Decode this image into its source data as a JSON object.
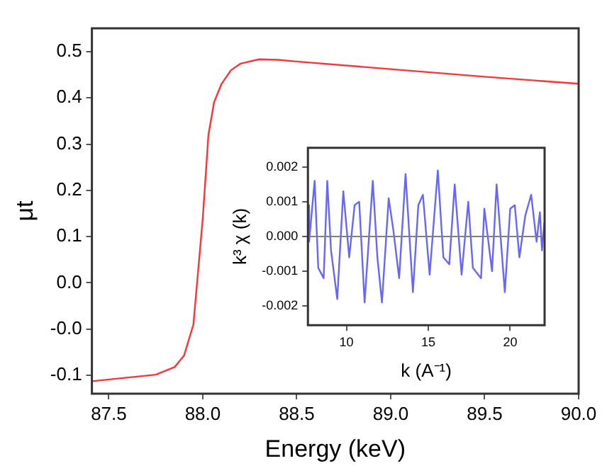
{
  "chart_data": [
    {
      "type": "line",
      "xlabel": "Energy (keV)",
      "ylabel": "μt",
      "x": [
        87.41,
        87.75,
        87.85,
        87.9,
        87.95,
        88.0,
        88.03,
        88.06,
        88.1,
        88.15,
        88.2,
        88.3,
        88.4,
        88.5,
        89.0,
        89.5,
        90.0
      ],
      "series": [
        {
          "color": "#ff3333",
          "values": [
            -0.141,
            -0.129,
            -0.115,
            -0.094,
            -0.037,
            0.159,
            0.312,
            0.372,
            0.406,
            0.431,
            0.443,
            0.451,
            0.45,
            0.447,
            0.433,
            0.419,
            0.406
          ]
        }
      ],
      "xlim": [
        87.41,
        90.0
      ],
      "ylim": [
        -0.164,
        0.508
      ],
      "xticks": [
        {
          "value": 87.5,
          "label": "87.5"
        },
        {
          "value": 88,
          "label": "88.0"
        },
        {
          "value": 88.5,
          "label": "88.5"
        },
        {
          "value": 89,
          "label": "89.0"
        },
        {
          "value": 89.5,
          "label": "89.5"
        },
        {
          "value": 90,
          "label": "90.0"
        }
      ],
      "yticks": [
        {
          "value": -0.13,
          "label": "-0.1"
        },
        {
          "value": -0.045,
          "label": "-0.0"
        },
        {
          "value": 0.04,
          "label": "0.0"
        },
        {
          "value": 0.125,
          "label": "0.1"
        },
        {
          "value": 0.21,
          "label": "0.2"
        },
        {
          "value": 0.295,
          "label": "0.3"
        },
        {
          "value": 0.38,
          "label": "0.4"
        },
        {
          "value": 0.465,
          "label": "0.5"
        }
      ],
      "grid": false
    },
    {
      "type": "line",
      "xlabel": "k (A⁻¹)",
      "ylabel": "k³ χ (k)",
      "x": [
        7.65,
        7.72,
        8.06,
        8.28,
        8.61,
        8.83,
        9.06,
        9.44,
        9.81,
        10.17,
        10.5,
        10.78,
        11.11,
        11.61,
        11.89,
        12.17,
        12.58,
        12.86,
        13.22,
        13.61,
        14.06,
        14.39,
        14.67,
        15.08,
        15.58,
        15.92,
        16.28,
        16.61,
        17.03,
        17.44,
        17.72,
        18.22,
        18.42,
        18.89,
        19.17,
        19.67,
        20.0,
        20.28,
        20.56,
        20.92,
        21.28,
        21.61,
        21.81,
        21.94,
        22.08
      ],
      "series": [
        {
          "color": "#6666ff",
          "values": [
            0.0009,
            -0.00015,
            0.0016,
            -0.0009,
            -0.0012,
            0.0016,
            -0.0004,
            -0.0018,
            0.0013,
            -0.0006,
            0.0009,
            0.001,
            -0.0019,
            0.0016,
            -0.0006,
            -0.0019,
            0.0011,
            0.0002,
            -0.0012,
            0.0018,
            -0.0016,
            0.0009,
            0.0012,
            -0.0011,
            0.0019,
            -0.0006,
            -0.0008,
            0.0015,
            -0.0011,
            0.001,
            -0.0009,
            -0.0012,
            0.0008,
            -0.001,
            0.0015,
            -0.0016,
            0.0008,
            0.0009,
            -0.0006,
            0.0006,
            0.0012,
            -0.00015,
            0.0007,
            -0.0004,
            0.0004
          ]
        }
      ],
      "xlim": [
        7.65,
        22.1
      ],
      "ylim": [
        -0.00255,
        0.00255
      ],
      "xticks": [
        10,
        15,
        20
      ],
      "yticks": [
        {
          "value": -0.002,
          "label": "-0.002"
        },
        {
          "value": -0.001,
          "label": "-0.001"
        },
        {
          "value": 0,
          "label": "0.000"
        },
        {
          "value": 0.001,
          "label": "0.001"
        },
        {
          "value": 0.002,
          "label": "0.002"
        }
      ],
      "ref_lines": [
        {
          "axis": "y",
          "value": 0,
          "color": "#808080"
        }
      ],
      "grid": false
    }
  ]
}
